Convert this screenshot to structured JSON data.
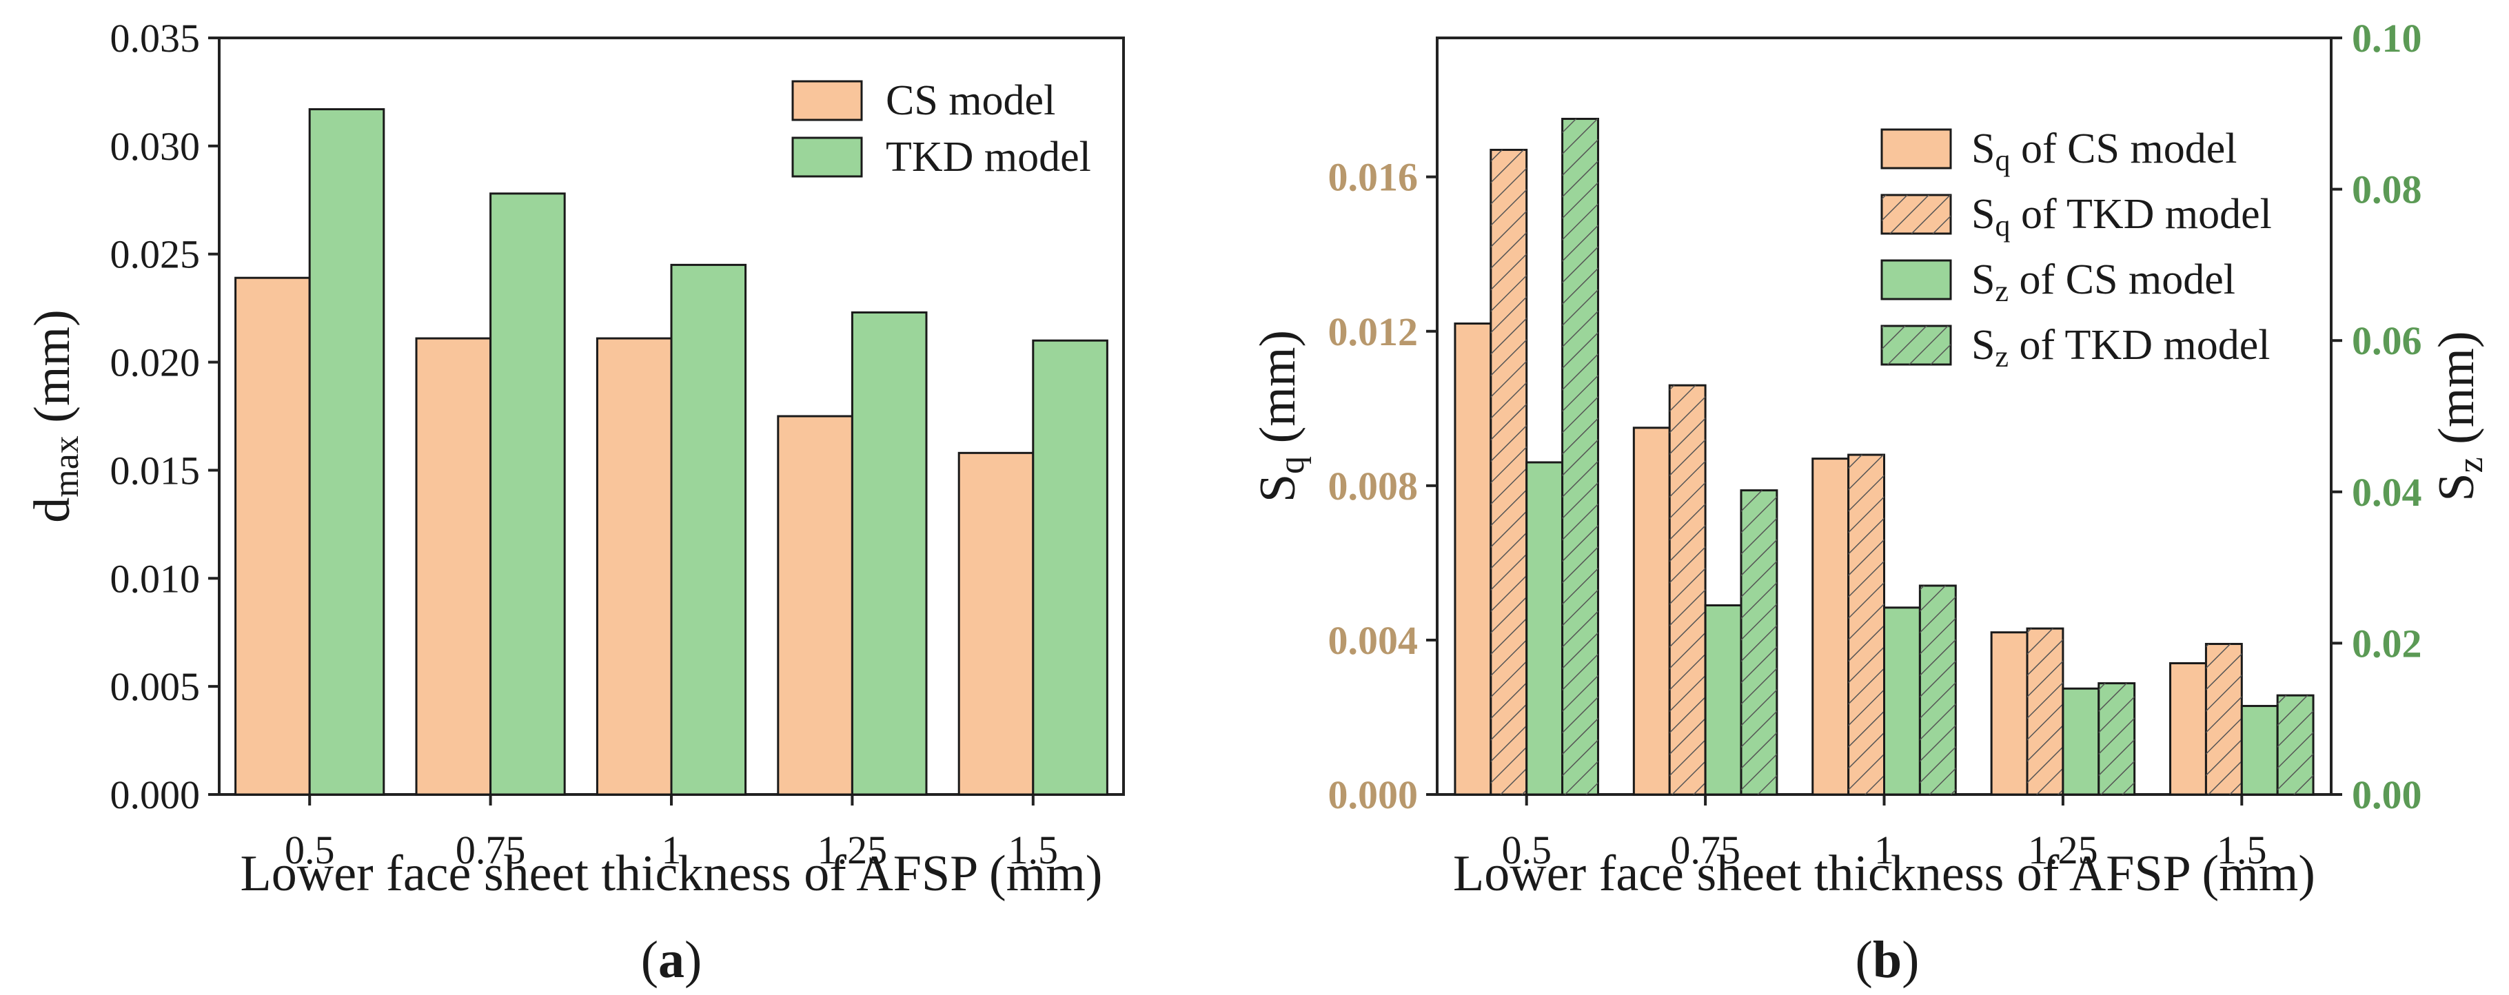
{
  "colors": {
    "cs": "#f9c59b",
    "tkd": "#9bd59a",
    "left_axis_b": "#b8986c",
    "right_axis_b": "#5b9a55",
    "hatch": "#555555",
    "axis": "#222222"
  },
  "chart_data": [
    {
      "type": "bar",
      "panel": "(a)",
      "panel_prefix": "(",
      "panel_letter": "a",
      "panel_suffix": ")",
      "categories": [
        "0.5",
        "0.75",
        "1",
        "1.25",
        "1.5"
      ],
      "series": [
        {
          "name": "CS  model",
          "values": [
            0.0239,
            0.0211,
            0.0211,
            0.0175,
            0.0158
          ]
        },
        {
          "name": "TKD model",
          "values": [
            0.0317,
            0.0278,
            0.0245,
            0.0223,
            0.021
          ]
        }
      ],
      "xlabel": "Lower face sheet thickness of AFSP (mm)",
      "ylabel": {
        "base": "d",
        "sub": "max",
        "unit": " (mm)"
      },
      "ylim": [
        0,
        0.035
      ],
      "yticks": [
        "0.000",
        "0.005",
        "0.010",
        "0.015",
        "0.020",
        "0.025",
        "0.030",
        "0.035"
      ],
      "legend_position": "top-right",
      "grid": false
    },
    {
      "type": "bar",
      "panel": "(b)",
      "panel_prefix": "(",
      "panel_letter": "b",
      "panel_suffix": ")",
      "categories": [
        "0.5",
        "0.75",
        "1",
        "1.25",
        "1.5"
      ],
      "series": [
        {
          "name": "Sq of CS model",
          "base": "S",
          "sub": "q",
          "rest": " of CS model",
          "axis": "left",
          "hatched": false,
          "values": [
            0.0122,
            0.0095,
            0.0087,
            0.0042,
            0.0034
          ]
        },
        {
          "name": "Sq of TKD model",
          "base": "S",
          "sub": "q",
          "rest": " of TKD model",
          "axis": "left",
          "hatched": true,
          "values": [
            0.0167,
            0.0106,
            0.0088,
            0.0043,
            0.0039
          ]
        },
        {
          "name": "Sz of CS model",
          "base": "S",
          "sub": "z",
          "rest": " of CS model",
          "axis": "right",
          "hatched": false,
          "values": [
            0.0439,
            0.025,
            0.0247,
            0.014,
            0.0117
          ]
        },
        {
          "name": "Sz of TKD model",
          "base": "S",
          "sub": "z",
          "rest": " of TKD model",
          "axis": "right",
          "hatched": true,
          "values": [
            0.0893,
            0.0402,
            0.0276,
            0.0147,
            0.0131
          ]
        }
      ],
      "xlabel": "Lower face sheet thickness of AFSP (mm)",
      "ylabel_left": {
        "base": "S",
        "sub": "q",
        "unit": " (mm)"
      },
      "ylabel_right": {
        "base": "S",
        "sub": "z",
        "unit": " (mm)"
      },
      "ylim_left": [
        0,
        0.0196
      ],
      "ylim_right": [
        0,
        0.1
      ],
      "yticks_left": [
        "0.000",
        "0.004",
        "0.008",
        "0.012",
        "0.016"
      ],
      "yticks_right": [
        "0.00",
        "0.02",
        "0.04",
        "0.06",
        "0.08",
        "0.10"
      ],
      "legend_position": "top-right",
      "grid": false
    }
  ]
}
